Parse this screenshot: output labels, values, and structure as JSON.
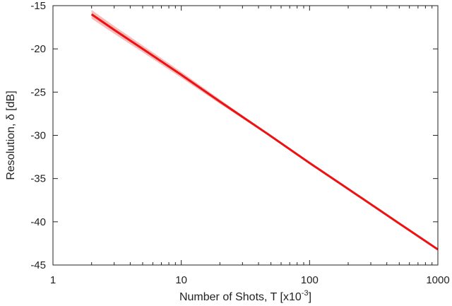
{
  "chart_data": {
    "type": "line",
    "xscale": "log",
    "xlim": [
      1,
      1000
    ],
    "ylim": [
      -45,
      -15
    ],
    "xticks": [
      1,
      10,
      100,
      1000
    ],
    "xtick_labels": [
      "1",
      "10",
      "100",
      "1000"
    ],
    "yticks": [
      -15,
      -20,
      -25,
      -30,
      -35,
      -40,
      -45
    ],
    "ytick_labels": [
      "-15",
      "-20",
      "-25",
      "-30",
      "-35",
      "-40",
      "-45"
    ],
    "xlabel": {
      "main": "Number of Shots, T [x10",
      "sup": "-3",
      "end": "]"
    },
    "ylabel": "Resolution, δ [dB]",
    "grid": false,
    "line_color": "#ee1111",
    "band_color": "#f4a6a6",
    "series": [
      {
        "x": [
          2,
          3,
          5,
          10,
          20,
          50,
          100,
          200,
          500,
          1000
        ],
        "y": [
          -16.0,
          -17.8,
          -20.0,
          -23.0,
          -26.1,
          -30.1,
          -33.2,
          -36.2,
          -40.2,
          -43.2
        ],
        "band_half_width": [
          0.5,
          0.45,
          0.4,
          0.35,
          0.25,
          0.1,
          0.05,
          0.03,
          0.02,
          0.02
        ]
      }
    ]
  }
}
